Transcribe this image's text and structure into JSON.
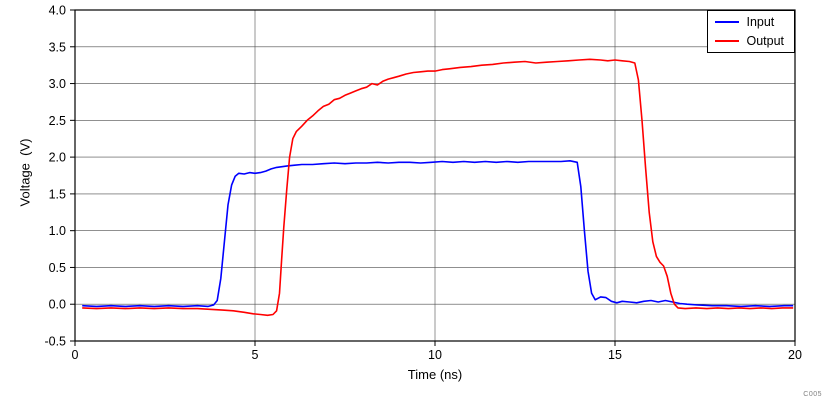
{
  "watermark": "C005",
  "chart_data": {
    "type": "line",
    "title": "",
    "xlabel": "Time (ns)",
    "ylabel": "Voltage  (V)",
    "xlim": [
      0,
      20
    ],
    "ylim": [
      -0.5,
      4.0
    ],
    "xticks": [
      0,
      5,
      10,
      15,
      20
    ],
    "xticklabels": [
      "0",
      "5",
      "10",
      "15",
      "20"
    ],
    "yticks": [
      -0.5,
      0.0,
      0.5,
      1.0,
      1.5,
      2.0,
      2.5,
      3.0,
      3.5,
      4.0
    ],
    "yticklabels": [
      "-0.5",
      "0.0",
      "0.5",
      "1.0",
      "1.5",
      "2.0",
      "2.5",
      "3.0",
      "3.5",
      "4.0"
    ],
    "grid": true,
    "legend_position": "top-right",
    "series": [
      {
        "name": "Input",
        "color": "#0000ff",
        "points": [
          [
            0.2,
            -0.02
          ],
          [
            0.6,
            -0.03
          ],
          [
            1.0,
            -0.02
          ],
          [
            1.4,
            -0.03
          ],
          [
            1.8,
            -0.02
          ],
          [
            2.2,
            -0.03
          ],
          [
            2.6,
            -0.02
          ],
          [
            3.0,
            -0.03
          ],
          [
            3.4,
            -0.02
          ],
          [
            3.7,
            -0.03
          ],
          [
            3.85,
            -0.01
          ],
          [
            3.95,
            0.05
          ],
          [
            4.05,
            0.35
          ],
          [
            4.15,
            0.85
          ],
          [
            4.25,
            1.35
          ],
          [
            4.35,
            1.62
          ],
          [
            4.45,
            1.74
          ],
          [
            4.55,
            1.78
          ],
          [
            4.7,
            1.77
          ],
          [
            4.85,
            1.79
          ],
          [
            5.0,
            1.78
          ],
          [
            5.15,
            1.79
          ],
          [
            5.3,
            1.81
          ],
          [
            5.45,
            1.84
          ],
          [
            5.6,
            1.86
          ],
          [
            5.75,
            1.87
          ],
          [
            5.9,
            1.88
          ],
          [
            6.1,
            1.89
          ],
          [
            6.3,
            1.9
          ],
          [
            6.6,
            1.9
          ],
          [
            6.9,
            1.91
          ],
          [
            7.2,
            1.92
          ],
          [
            7.5,
            1.91
          ],
          [
            7.8,
            1.92
          ],
          [
            8.1,
            1.92
          ],
          [
            8.4,
            1.93
          ],
          [
            8.7,
            1.92
          ],
          [
            9.0,
            1.93
          ],
          [
            9.3,
            1.93
          ],
          [
            9.6,
            1.92
          ],
          [
            9.9,
            1.93
          ],
          [
            10.2,
            1.94
          ],
          [
            10.5,
            1.93
          ],
          [
            10.8,
            1.94
          ],
          [
            11.1,
            1.93
          ],
          [
            11.4,
            1.94
          ],
          [
            11.7,
            1.93
          ],
          [
            12.0,
            1.94
          ],
          [
            12.3,
            1.93
          ],
          [
            12.6,
            1.94
          ],
          [
            12.9,
            1.94
          ],
          [
            13.2,
            1.94
          ],
          [
            13.5,
            1.94
          ],
          [
            13.75,
            1.95
          ],
          [
            13.95,
            1.93
          ],
          [
            14.05,
            1.6
          ],
          [
            14.15,
            1.0
          ],
          [
            14.25,
            0.45
          ],
          [
            14.35,
            0.15
          ],
          [
            14.45,
            0.06
          ],
          [
            14.6,
            0.1
          ],
          [
            14.75,
            0.09
          ],
          [
            14.9,
            0.04
          ],
          [
            15.05,
            0.02
          ],
          [
            15.2,
            0.04
          ],
          [
            15.4,
            0.03
          ],
          [
            15.6,
            0.02
          ],
          [
            15.8,
            0.04
          ],
          [
            16.0,
            0.05
          ],
          [
            16.2,
            0.03
          ],
          [
            16.4,
            0.05
          ],
          [
            16.6,
            0.03
          ],
          [
            16.8,
            0.01
          ],
          [
            17.0,
            0.0
          ],
          [
            17.3,
            -0.01
          ],
          [
            17.7,
            -0.02
          ],
          [
            18.1,
            -0.02
          ],
          [
            18.5,
            -0.03
          ],
          [
            18.9,
            -0.02
          ],
          [
            19.3,
            -0.03
          ],
          [
            19.7,
            -0.02
          ],
          [
            19.95,
            -0.02
          ]
        ]
      },
      {
        "name": "Output",
        "color": "#ff0000",
        "points": [
          [
            0.2,
            -0.05
          ],
          [
            0.6,
            -0.06
          ],
          [
            1.0,
            -0.05
          ],
          [
            1.4,
            -0.06
          ],
          [
            1.8,
            -0.05
          ],
          [
            2.2,
            -0.06
          ],
          [
            2.6,
            -0.05
          ],
          [
            3.0,
            -0.06
          ],
          [
            3.4,
            -0.06
          ],
          [
            3.8,
            -0.07
          ],
          [
            4.1,
            -0.08
          ],
          [
            4.4,
            -0.09
          ],
          [
            4.7,
            -0.11
          ],
          [
            4.95,
            -0.13
          ],
          [
            5.15,
            -0.14
          ],
          [
            5.35,
            -0.15
          ],
          [
            5.5,
            -0.14
          ],
          [
            5.6,
            -0.09
          ],
          [
            5.68,
            0.15
          ],
          [
            5.74,
            0.6
          ],
          [
            5.8,
            1.05
          ],
          [
            5.88,
            1.55
          ],
          [
            5.96,
            2.0
          ],
          [
            6.05,
            2.25
          ],
          [
            6.15,
            2.35
          ],
          [
            6.3,
            2.42
          ],
          [
            6.45,
            2.5
          ],
          [
            6.6,
            2.56
          ],
          [
            6.75,
            2.63
          ],
          [
            6.9,
            2.69
          ],
          [
            7.05,
            2.72
          ],
          [
            7.2,
            2.78
          ],
          [
            7.35,
            2.8
          ],
          [
            7.5,
            2.84
          ],
          [
            7.65,
            2.87
          ],
          [
            7.8,
            2.9
          ],
          [
            7.95,
            2.93
          ],
          [
            8.1,
            2.95
          ],
          [
            8.25,
            3.0
          ],
          [
            8.4,
            2.98
          ],
          [
            8.55,
            3.03
          ],
          [
            8.7,
            3.06
          ],
          [
            8.85,
            3.08
          ],
          [
            9.0,
            3.1
          ],
          [
            9.2,
            3.13
          ],
          [
            9.4,
            3.15
          ],
          [
            9.6,
            3.16
          ],
          [
            9.8,
            3.17
          ],
          [
            10.0,
            3.17
          ],
          [
            10.2,
            3.19
          ],
          [
            10.4,
            3.2
          ],
          [
            10.7,
            3.22
          ],
          [
            11.0,
            3.23
          ],
          [
            11.3,
            3.25
          ],
          [
            11.6,
            3.26
          ],
          [
            11.9,
            3.28
          ],
          [
            12.2,
            3.29
          ],
          [
            12.5,
            3.3
          ],
          [
            12.8,
            3.28
          ],
          [
            13.1,
            3.29
          ],
          [
            13.4,
            3.3
          ],
          [
            13.7,
            3.31
          ],
          [
            14.0,
            3.32
          ],
          [
            14.3,
            3.33
          ],
          [
            14.6,
            3.32
          ],
          [
            14.8,
            3.31
          ],
          [
            15.0,
            3.32
          ],
          [
            15.2,
            3.31
          ],
          [
            15.4,
            3.3
          ],
          [
            15.55,
            3.28
          ],
          [
            15.65,
            3.05
          ],
          [
            15.75,
            2.5
          ],
          [
            15.85,
            1.85
          ],
          [
            15.95,
            1.25
          ],
          [
            16.05,
            0.85
          ],
          [
            16.15,
            0.65
          ],
          [
            16.25,
            0.57
          ],
          [
            16.35,
            0.52
          ],
          [
            16.45,
            0.38
          ],
          [
            16.55,
            0.15
          ],
          [
            16.65,
            0.0
          ],
          [
            16.75,
            -0.05
          ],
          [
            16.95,
            -0.06
          ],
          [
            17.25,
            -0.05
          ],
          [
            17.55,
            -0.06
          ],
          [
            17.85,
            -0.05
          ],
          [
            18.15,
            -0.06
          ],
          [
            18.45,
            -0.05
          ],
          [
            18.75,
            -0.06
          ],
          [
            19.05,
            -0.05
          ],
          [
            19.35,
            -0.06
          ],
          [
            19.65,
            -0.05
          ],
          [
            19.95,
            -0.05
          ]
        ]
      }
    ]
  }
}
